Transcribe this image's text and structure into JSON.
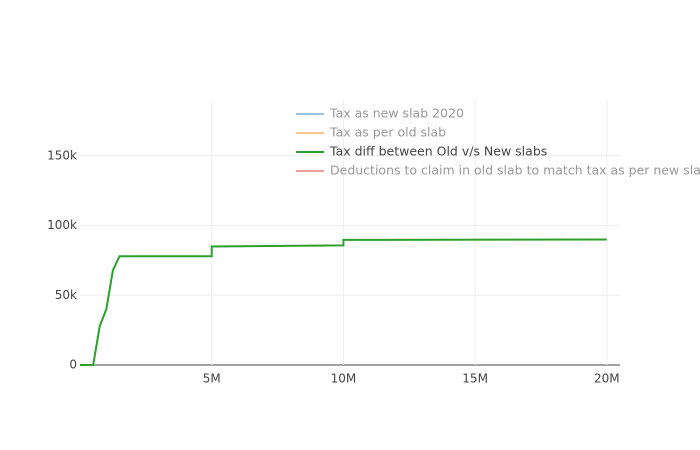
{
  "chart_data": {
    "type": "line",
    "xlim": [
      0,
      20500000
    ],
    "ylim": [
      0,
      190000
    ],
    "xticks": [
      {
        "value": 5000000,
        "label": "5M"
      },
      {
        "value": 10000000,
        "label": "10M"
      },
      {
        "value": 15000000,
        "label": "15M"
      },
      {
        "value": 20000000,
        "label": "20M"
      }
    ],
    "yticks": [
      0,
      {
        "value": 50000,
        "label": "50k"
      },
      {
        "value": 100000,
        "label": "100k"
      },
      {
        "value": 150000,
        "label": "150k"
      }
    ],
    "grid": true,
    "legend": "top-right",
    "series": [
      {
        "name": "Tax as new slab 2020",
        "color": "#1f77b4",
        "visible": "legendonly"
      },
      {
        "name": "Tax as per old slab",
        "color": "#ff7f0e",
        "visible": "legendonly"
      },
      {
        "name": "Tax diff between Old v/s New slabs",
        "color": "#2ca02c",
        "x": [
          0,
          500000,
          750000,
          1000000,
          1250000,
          1500000,
          5000000,
          5000000,
          10000000,
          10000000,
          20000000
        ],
        "values": [
          0,
          0,
          28000,
          40000,
          68000,
          78000,
          78000,
          85000,
          85800,
          89700,
          90000
        ]
      },
      {
        "name": "Deductions to claim in old slab to match tax as per new slab",
        "color": "#d62728",
        "visible": "legendonly"
      }
    ]
  }
}
